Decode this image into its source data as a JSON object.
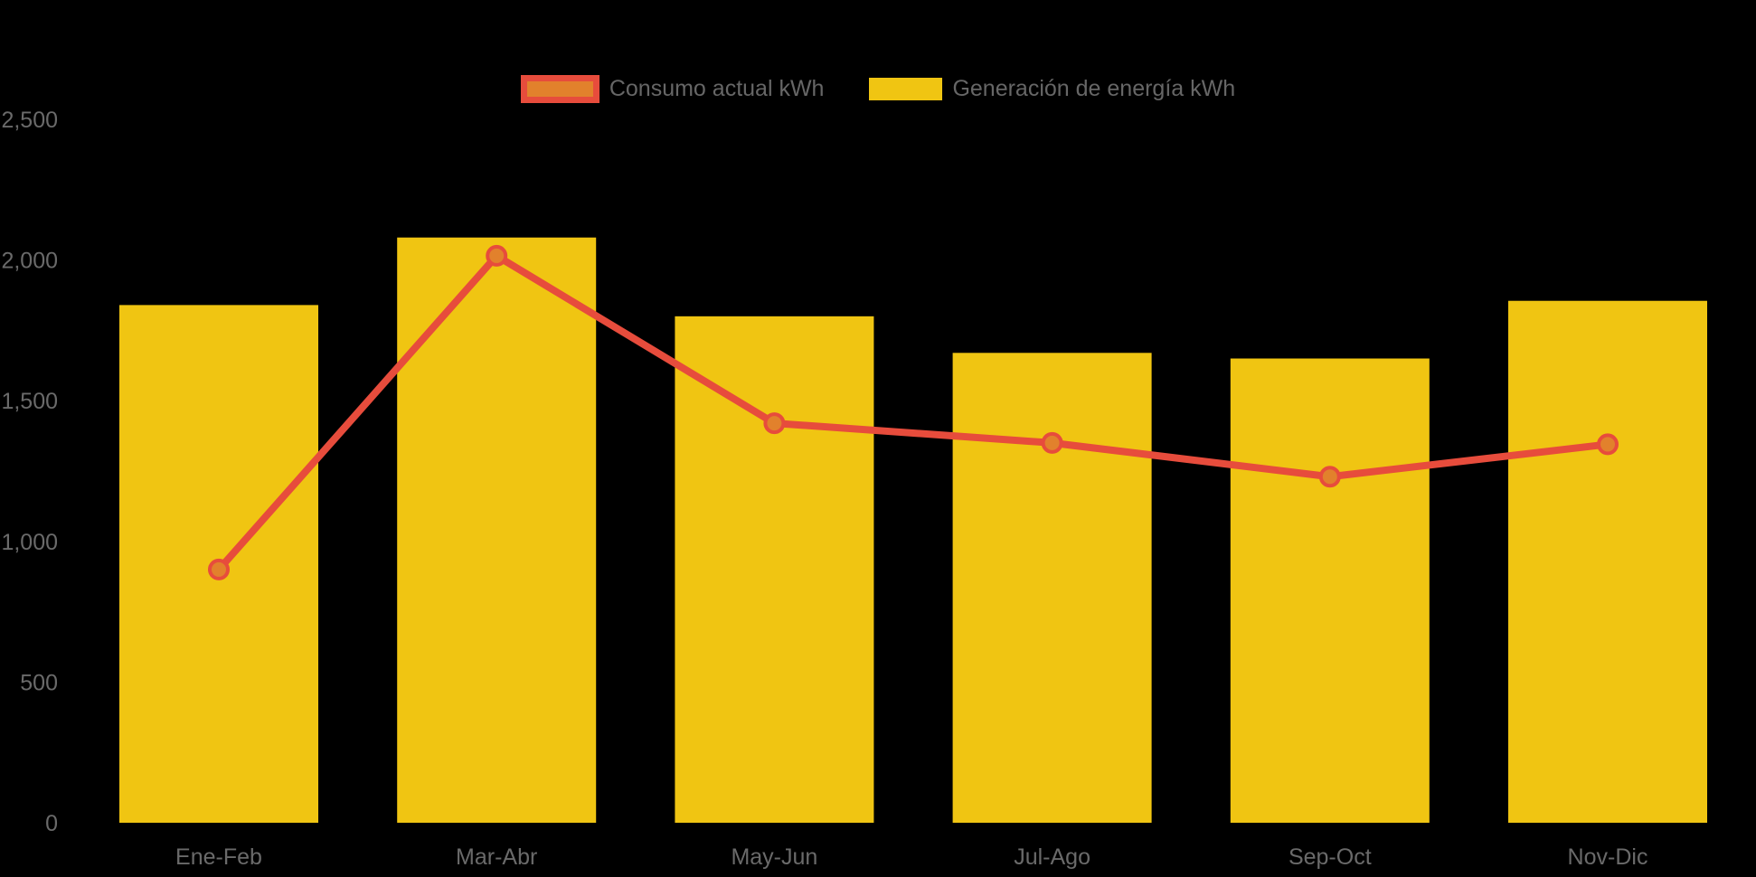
{
  "chart_data": {
    "type": "combo",
    "title": "",
    "categories": [
      "Ene-Feb",
      "Mar-Abr",
      "May-Jun",
      "Jul-Ago",
      "Sep-Oct",
      "Nov-Dic"
    ],
    "series": [
      {
        "name": "Consumo actual kWh",
        "type": "line",
        "color": "#E74C3C",
        "marker_color": "#E2812C",
        "values": [
          900,
          2015,
          1420,
          1350,
          1230,
          1345
        ]
      },
      {
        "name": "Generación de energía kWh",
        "type": "bar",
        "color": "#F0C512",
        "values": [
          1840,
          2080,
          1800,
          1670,
          1650,
          1855
        ]
      }
    ],
    "xlabel": "",
    "ylabel": "",
    "ylim": [
      0,
      2500
    ],
    "yticks": {
      "values": [
        0,
        500,
        1000,
        1500,
        2000,
        2500
      ],
      "labels": [
        "0",
        "500",
        "1,000",
        "1,500",
        "2,000",
        "2,500"
      ]
    },
    "grid": false,
    "legend_position": "top-center",
    "background_color": "#000000",
    "text_color": "#666666"
  }
}
